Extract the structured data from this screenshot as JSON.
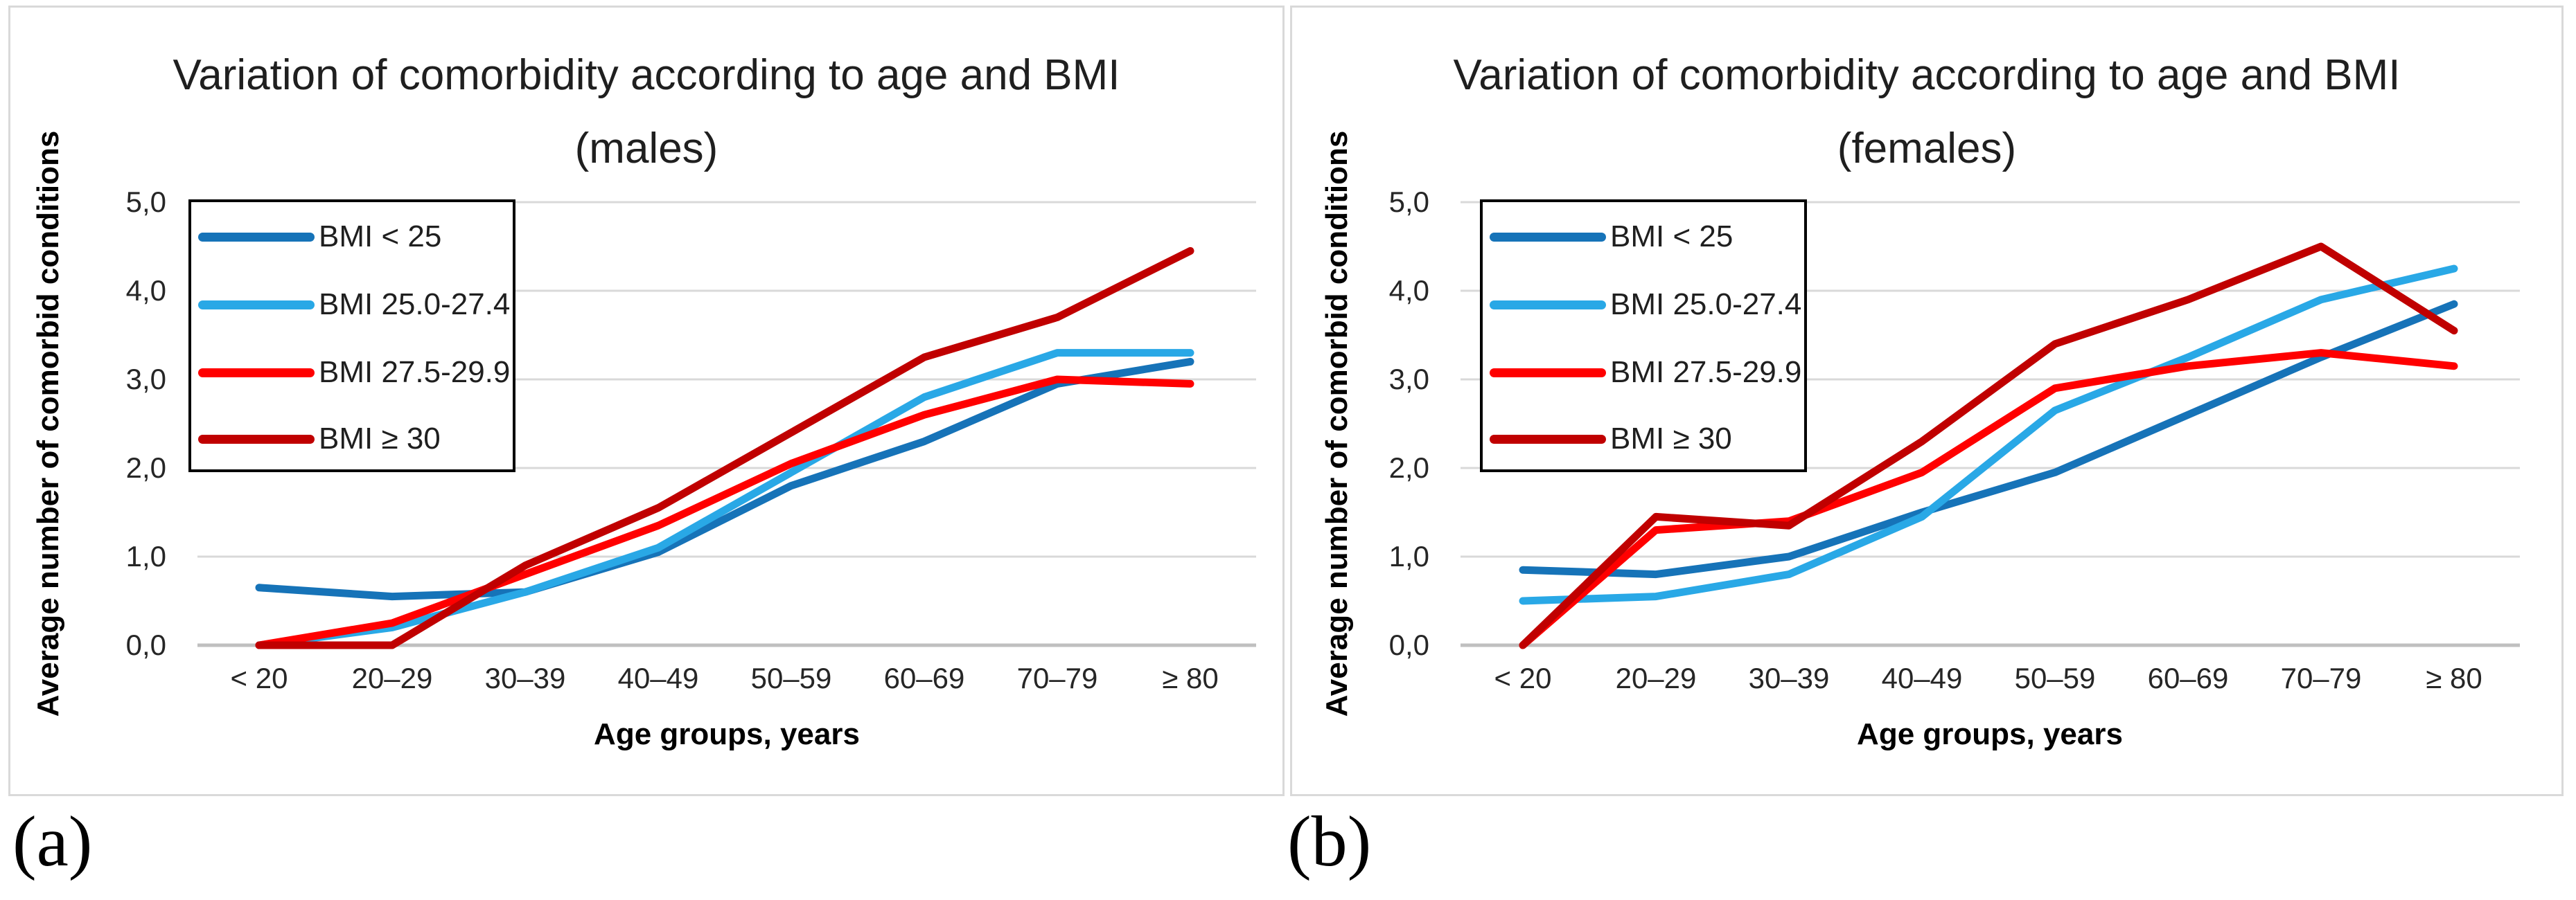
{
  "figure": {
    "panel_a_label": "(a)",
    "panel_b_label": "(b)"
  },
  "colors": {
    "bmi_lt_25": "#1673B8",
    "bmi_25_27": "#29A8E6",
    "bmi_27_29": "#FF0000",
    "bmi_ge_30": "#C00000",
    "gridline": "#D9D9D9",
    "axis_line": "#BFBFBF",
    "panel_border": "#D9D9D9"
  },
  "charts": [
    {
      "title": "Variation of comorbidity according to age and BMI",
      "subtitle": "(males)",
      "y_axis_title": "Average number of comorbid conditions",
      "x_axis_title": "Age groups, years",
      "chart_data": {
        "type": "line",
        "categories": [
          "< 20",
          "20–29",
          "30–39",
          "40–49",
          "50–59",
          "60–69",
          "70–79",
          "≥ 80"
        ],
        "y_tick_labels": [
          "0,0",
          "1,0",
          "2,0",
          "3,0",
          "4,0",
          "5,0"
        ],
        "ylim": [
          0,
          5
        ],
        "grid": true,
        "legend_position": "upper-left",
        "series": [
          {
            "name": "BMI < 25",
            "color_key": "bmi_lt_25",
            "values": [
              0.65,
              0.55,
              0.6,
              1.05,
              1.8,
              2.3,
              2.95,
              3.2
            ]
          },
          {
            "name": "BMI 25.0-27.4",
            "color_key": "bmi_25_27",
            "values": [
              0.0,
              0.2,
              0.6,
              1.1,
              1.95,
              2.8,
              3.3,
              3.3
            ]
          },
          {
            "name": "BMI 27.5-29.9",
            "color_key": "bmi_27_29",
            "values": [
              0.0,
              0.25,
              0.8,
              1.35,
              2.05,
              2.6,
              3.0,
              2.95
            ]
          },
          {
            "name": "BMI ≥ 30",
            "color_key": "bmi_ge_30",
            "values": [
              0.0,
              0.0,
              0.9,
              1.55,
              2.4,
              3.25,
              3.7,
              4.45
            ]
          }
        ]
      }
    },
    {
      "title": "Variation of comorbidity according to age and BMI",
      "subtitle": "(females)",
      "y_axis_title": "Average number of comorbid conditions",
      "x_axis_title": "Age groups, years",
      "chart_data": {
        "type": "line",
        "categories": [
          "< 20",
          "20–29",
          "30–39",
          "40–49",
          "50–59",
          "60–69",
          "70–79",
          "≥ 80"
        ],
        "y_tick_labels": [
          "0,0",
          "1,0",
          "2,0",
          "3,0",
          "4,0",
          "5,0"
        ],
        "ylim": [
          0,
          5
        ],
        "grid": true,
        "legend_position": "upper-left",
        "series": [
          {
            "name": "BMI < 25",
            "color_key": "bmi_lt_25",
            "values": [
              0.85,
              0.8,
              1.0,
              1.5,
              1.95,
              2.6,
              3.25,
              3.85
            ]
          },
          {
            "name": "BMI 25.0-27.4",
            "color_key": "bmi_25_27",
            "values": [
              0.5,
              0.55,
              0.8,
              1.45,
              2.65,
              3.25,
              3.9,
              4.25
            ]
          },
          {
            "name": "BMI 27.5-29.9",
            "color_key": "bmi_27_29",
            "values": [
              0.0,
              1.3,
              1.4,
              1.95,
              2.9,
              3.15,
              3.3,
              3.15
            ]
          },
          {
            "name": "BMI ≥ 30",
            "color_key": "bmi_ge_30",
            "values": [
              0.0,
              1.45,
              1.35,
              2.3,
              3.4,
              3.9,
              4.5,
              3.55
            ]
          }
        ]
      }
    }
  ]
}
